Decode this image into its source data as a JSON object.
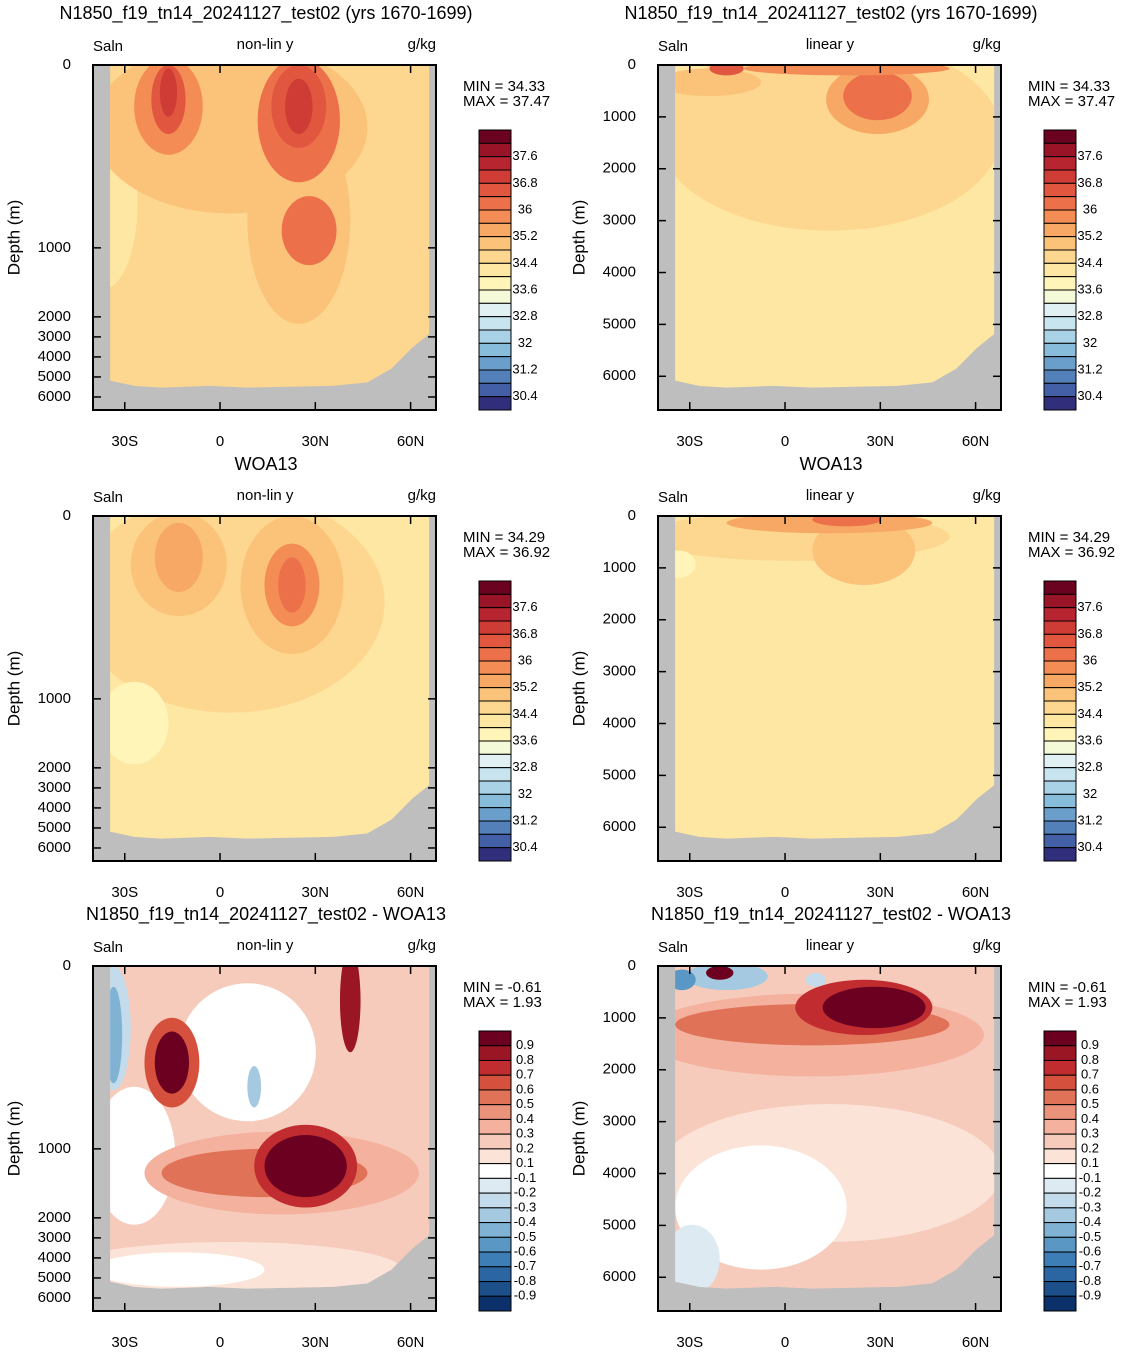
{
  "chart_data": [
    {
      "type": "contour",
      "title": "N1850_f19_tn14_20241127_test02 (yrs 1670-1699)",
      "left_label": "Saln",
      "center_label": "non-lin y",
      "units": "g/kg",
      "stats": [
        "MIN =  34.33",
        "MAX =  37.47"
      ],
      "ylabel": "Depth (m)",
      "y_scale": "non-linear",
      "xlim": [
        -40,
        68
      ],
      "ylim": [
        0,
        6650
      ],
      "xticks": [
        {
          "value": -30,
          "label": "30S"
        },
        0,
        {
          "value": 30,
          "label": "30N"
        },
        {
          "value": 60,
          "label": "60N"
        }
      ],
      "yticks": [
        0,
        1000,
        2000,
        3000,
        4000,
        5000,
        6000
      ],
      "colorbar": {
        "labels": [
          37.6,
          36.8,
          36,
          35.2,
          34.4,
          33.6,
          32.8,
          32,
          31.2,
          30.4
        ],
        "colors": [
          "#6a0220",
          "#9a1428",
          "#b72530",
          "#cf3b35",
          "#e0563e",
          "#ec7049",
          "#f48c55",
          "#f8a865",
          "#fbc27a",
          "#fdd68f",
          "#fee7a3",
          "#fff5b8",
          "#f4f9d8",
          "#e1f1f3",
          "#c8e4ef",
          "#a9d2e6",
          "#87bcdb",
          "#6a9ecb",
          "#5480b9",
          "#4360a6",
          "#312f7c"
        ]
      }
    },
    {
      "type": "contour",
      "title": "N1850_f19_tn14_20241127_test02 (yrs 1670-1699)",
      "left_label": "Saln",
      "center_label": "linear y",
      "units": "g/kg",
      "stats": [
        "MIN =  34.33",
        "MAX =  37.47"
      ],
      "ylabel": "Depth (m)",
      "y_scale": "linear",
      "xlim": [
        -40,
        68
      ],
      "ylim": [
        0,
        6650
      ],
      "xticks": [
        {
          "value": -30,
          "label": "30S"
        },
        0,
        {
          "value": 30,
          "label": "30N"
        },
        {
          "value": 60,
          "label": "60N"
        }
      ],
      "yticks": [
        0,
        1000,
        2000,
        3000,
        4000,
        5000,
        6000
      ],
      "colorbar": {
        "labels": [
          37.6,
          36.8,
          36,
          35.2,
          34.4,
          33.6,
          32.8,
          32,
          31.2,
          30.4
        ],
        "colors": [
          "#6a0220",
          "#9a1428",
          "#b72530",
          "#cf3b35",
          "#e0563e",
          "#ec7049",
          "#f48c55",
          "#f8a865",
          "#fbc27a",
          "#fdd68f",
          "#fee7a3",
          "#fff5b8",
          "#f4f9d8",
          "#e1f1f3",
          "#c8e4ef",
          "#a9d2e6",
          "#87bcdb",
          "#6a9ecb",
          "#5480b9",
          "#4360a6",
          "#312f7c"
        ]
      }
    },
    {
      "type": "contour",
      "title": "WOA13",
      "left_label": "Saln",
      "center_label": "non-lin y",
      "units": "g/kg",
      "stats": [
        "MIN =  34.29",
        "MAX =  36.92"
      ],
      "ylabel": "Depth (m)",
      "y_scale": "non-linear",
      "xlim": [
        -40,
        68
      ],
      "ylim": [
        0,
        6650
      ],
      "xticks": [
        {
          "value": -30,
          "label": "30S"
        },
        0,
        {
          "value": 30,
          "label": "30N"
        },
        {
          "value": 60,
          "label": "60N"
        }
      ],
      "yticks": [
        0,
        1000,
        2000,
        3000,
        4000,
        5000,
        6000
      ],
      "colorbar": {
        "labels": [
          37.6,
          36.8,
          36,
          35.2,
          34.4,
          33.6,
          32.8,
          32,
          31.2,
          30.4
        ],
        "colors": [
          "#6a0220",
          "#9a1428",
          "#b72530",
          "#cf3b35",
          "#e0563e",
          "#ec7049",
          "#f48c55",
          "#f8a865",
          "#fbc27a",
          "#fdd68f",
          "#fee7a3",
          "#fff5b8",
          "#f4f9d8",
          "#e1f1f3",
          "#c8e4ef",
          "#a9d2e6",
          "#87bcdb",
          "#6a9ecb",
          "#5480b9",
          "#4360a6",
          "#312f7c"
        ]
      }
    },
    {
      "type": "contour",
      "title": "WOA13",
      "left_label": "Saln",
      "center_label": "linear y",
      "units": "g/kg",
      "stats": [
        "MIN =  34.29",
        "MAX =  36.92"
      ],
      "ylabel": "Depth (m)",
      "y_scale": "linear",
      "xlim": [
        -40,
        68
      ],
      "ylim": [
        0,
        6650
      ],
      "xticks": [
        {
          "value": -30,
          "label": "30S"
        },
        0,
        {
          "value": 30,
          "label": "30N"
        },
        {
          "value": 60,
          "label": "60N"
        }
      ],
      "yticks": [
        0,
        1000,
        2000,
        3000,
        4000,
        5000,
        6000
      ],
      "colorbar": {
        "labels": [
          37.6,
          36.8,
          36,
          35.2,
          34.4,
          33.6,
          32.8,
          32,
          31.2,
          30.4
        ],
        "colors": [
          "#6a0220",
          "#9a1428",
          "#b72530",
          "#cf3b35",
          "#e0563e",
          "#ec7049",
          "#f48c55",
          "#f8a865",
          "#fbc27a",
          "#fdd68f",
          "#fee7a3",
          "#fff5b8",
          "#f4f9d8",
          "#e1f1f3",
          "#c8e4ef",
          "#a9d2e6",
          "#87bcdb",
          "#6a9ecb",
          "#5480b9",
          "#4360a6",
          "#312f7c"
        ]
      }
    },
    {
      "type": "contour",
      "title": "N1850_f19_tn14_20241127_test02 - WOA13",
      "left_label": "Saln",
      "center_label": "non-lin y",
      "units": "g/kg",
      "stats": [
        "MIN =  -0.61",
        "MAX =   1.93"
      ],
      "ylabel": "Depth (m)",
      "y_scale": "non-linear",
      "xlim": [
        -40,
        68
      ],
      "ylim": [
        0,
        6650
      ],
      "xticks": [
        {
          "value": -30,
          "label": "30S"
        },
        0,
        {
          "value": 30,
          "label": "30N"
        },
        {
          "value": 60,
          "label": "60N"
        }
      ],
      "yticks": [
        0,
        1000,
        2000,
        3000,
        4000,
        5000,
        6000
      ],
      "colorbar": {
        "labels": [
          0.9,
          0.8,
          0.7,
          0.6,
          0.5,
          0.4,
          0.3,
          0.2,
          0.1,
          -0.1,
          -0.2,
          -0.3,
          -0.4,
          -0.5,
          -0.6,
          -0.7,
          -0.8,
          -0.9
        ],
        "colors": [
          "#6b0020",
          "#9b1625",
          "#c02c30",
          "#d5513e",
          "#e07257",
          "#eb927a",
          "#f3b19e",
          "#f7cbbb",
          "#fbe3d7",
          "#ffffff",
          "#ddeaf2",
          "#c3dbea",
          "#a5c9e0",
          "#80b2d4",
          "#5a97c5",
          "#3d7eb6",
          "#2b66a3",
          "#1d4f8a",
          "#0c3069"
        ]
      }
    },
    {
      "type": "contour",
      "title": "N1850_f19_tn14_20241127_test02 - WOA13",
      "left_label": "Saln",
      "center_label": "linear y",
      "units": "g/kg",
      "stats": [
        "MIN =  -0.61",
        "MAX =   1.93"
      ],
      "ylabel": "Depth (m)",
      "y_scale": "linear",
      "xlim": [
        -40,
        68
      ],
      "ylim": [
        0,
        6650
      ],
      "xticks": [
        {
          "value": -30,
          "label": "30S"
        },
        0,
        {
          "value": 30,
          "label": "30N"
        },
        {
          "value": 60,
          "label": "60N"
        }
      ],
      "yticks": [
        0,
        1000,
        2000,
        3000,
        4000,
        5000,
        6000
      ],
      "colorbar": {
        "labels": [
          0.9,
          0.8,
          0.7,
          0.6,
          0.5,
          0.4,
          0.3,
          0.2,
          0.1,
          -0.1,
          -0.2,
          -0.3,
          -0.4,
          -0.5,
          -0.6,
          -0.7,
          -0.8,
          -0.9
        ],
        "colors": [
          "#6b0020",
          "#9b1625",
          "#c02c30",
          "#d5513e",
          "#e07257",
          "#eb927a",
          "#f3b19e",
          "#f7cbbb",
          "#fbe3d7",
          "#ffffff",
          "#ddeaf2",
          "#c3dbea",
          "#a5c9e0",
          "#80b2d4",
          "#5a97c5",
          "#3d7eb6",
          "#2b66a3",
          "#1d4f8a",
          "#0c3069"
        ]
      }
    }
  ]
}
